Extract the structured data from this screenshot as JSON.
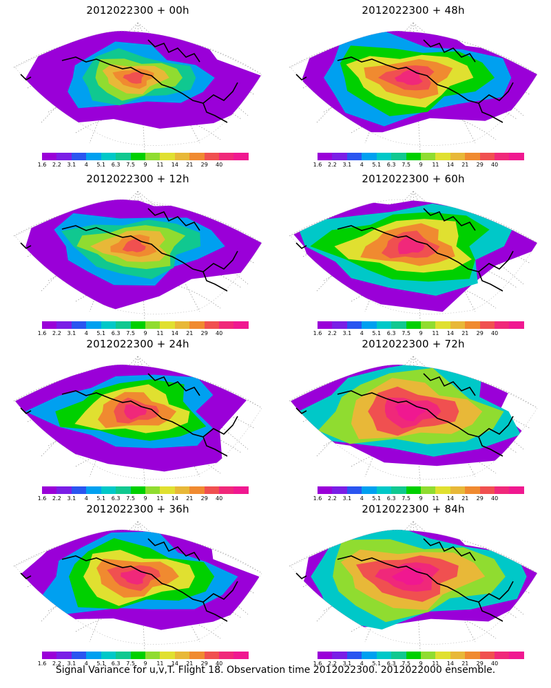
{
  "panels": [
    {
      "title": "2012022300 + 00h",
      "intensity": 0.25
    },
    {
      "title": "2012022300 + 48h",
      "intensity": 0.65
    },
    {
      "title": "2012022300 + 12h",
      "intensity": 0.4
    },
    {
      "title": "2012022300 + 60h",
      "intensity": 0.75
    },
    {
      "title": "2012022300 + 24h",
      "intensity": 0.5
    },
    {
      "title": "2012022300 + 72h",
      "intensity": 0.85
    },
    {
      "title": "2012022300 + 36h",
      "intensity": 0.6
    },
    {
      "title": "2012022300 + 84h",
      "intensity": 0.9
    }
  ],
  "colorbar": {
    "labels": [
      "1.6",
      "2.2",
      "3.1",
      "4",
      "5.1",
      "6.3",
      "7.5",
      "9",
      "11",
      "14",
      "21",
      "29",
      "40"
    ],
    "colors": [
      "#9a00d8",
      "#7a1ee6",
      "#2a55f0",
      "#00a0f0",
      "#00c8c8",
      "#10c890",
      "#00d000",
      "#90dc30",
      "#e0e030",
      "#e8b838",
      "#f08a30",
      "#f05050",
      "#f0287a",
      "#f01890"
    ]
  },
  "footer": "Signal Variance for u,v,T. Flight 18. Observation time 2012022300. 2012022000 ensemble."
}
